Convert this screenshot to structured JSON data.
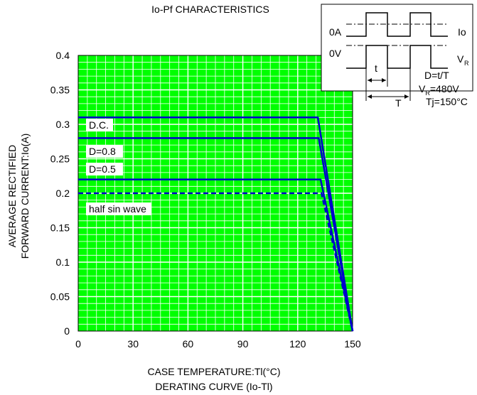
{
  "chart_data": {
    "type": "line",
    "title": "Io-Pf CHARACTERISTICS",
    "subtitle": "DERATING CURVE (Io-Tl)",
    "xlabel": "CASE TEMPERATURE:Tl(°C)",
    "ylabel": [
      "AVERAGE RECTIFIED",
      "FORWARD CURRENT:Io(A)"
    ],
    "xlim": [
      0,
      150
    ],
    "ylim": [
      0,
      0.4
    ],
    "xticks": [
      0,
      30,
      60,
      90,
      120,
      150
    ],
    "xtick_labels": [
      "0",
      "30",
      "60",
      "90",
      "120",
      "150"
    ],
    "yticks": [
      0,
      0.05,
      0.1,
      0.15,
      0.2,
      0.25,
      0.3,
      0.35,
      0.4
    ],
    "ytick_labels": [
      "0",
      "0.05",
      "0.1",
      "0.15",
      "0.2",
      "0.25",
      "0.3",
      "0.35",
      "0.4"
    ],
    "grid": true,
    "series": [
      {
        "name": "D.C.",
        "x": [
          0,
          131,
          150
        ],
        "y": [
          0.31,
          0.31,
          0
        ],
        "style": "solid"
      },
      {
        "name": "D=0.8",
        "x": [
          0,
          131.5,
          150
        ],
        "y": [
          0.28,
          0.28,
          0
        ],
        "style": "solid"
      },
      {
        "name": "D=0.5",
        "x": [
          0,
          132.5,
          150
        ],
        "y": [
          0.22,
          0.22,
          0
        ],
        "style": "solid"
      },
      {
        "name": "half sin wave",
        "x": [
          0,
          133,
          150
        ],
        "y": [
          0.2,
          0.2,
          0
        ],
        "style": "dashed"
      }
    ],
    "inset": {
      "io_label": "Io",
      "zero_a_label": "0A",
      "zero_v_label": "0V",
      "vr_label": "V",
      "vr_sub": "R",
      "t_label": "t",
      "T_label": "T",
      "duty_label": "D=t/T",
      "vr_value_prefix": "V",
      "vr_value_sub": "R",
      "vr_value_suffix": "=480V",
      "tj_label": "Tj=150°C"
    }
  },
  "colors": {
    "plot_bg": "#00ff00",
    "grid": "#ffffff",
    "series": "#0000cc",
    "axis": "#000000"
  }
}
